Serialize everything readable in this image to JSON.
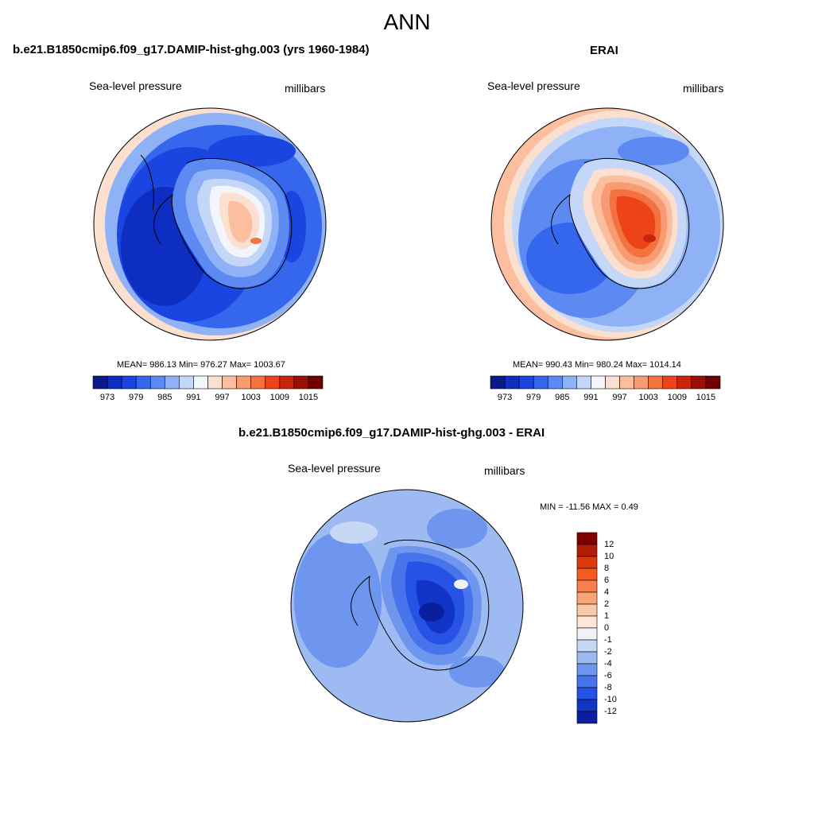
{
  "main_title": "ANN",
  "panels": {
    "model": {
      "title": "b.e21.B1850cmip6.f09_g17.DAMIP-hist-ghg.003 (yrs 1960-1984)",
      "left_label": "Sea-level pressure",
      "right_label": "millibars",
      "stats": "MEAN= 986.13  Min= 976.27  Max= 1003.67",
      "mean": 986.13,
      "min": 976.27,
      "max": 1003.67
    },
    "obs": {
      "title": "ERAI",
      "left_label": "Sea-level pressure",
      "right_label": "millibars",
      "stats": "MEAN= 990.43  Min= 980.24  Max= 1014.14",
      "mean": 990.43,
      "min": 980.24,
      "max": 1014.14
    },
    "diff": {
      "title": "b.e21.B1850cmip6.f09_g17.DAMIP-hist-ghg.003 - ERAI",
      "left_label": "Sea-level pressure",
      "right_label": "millibars",
      "stats": "MIN = -11.56 MAX =   0.49",
      "min": -11.56,
      "max": 0.49
    }
  },
  "colorbar_abs": {
    "tick_labels": [
      "973",
      "979",
      "985",
      "991",
      "997",
      "1003",
      "1009",
      "1015"
    ],
    "colors": [
      "#0a1a8c",
      "#0d2ec0",
      "#1a45e0",
      "#3566ee",
      "#5c8af2",
      "#8fb1f5",
      "#c4d7f8",
      "#f2f5fb",
      "#fce0cf",
      "#fbbf9f",
      "#f89a72",
      "#f4723f",
      "#ec4418",
      "#c9250a",
      "#9a1005",
      "#6e0000"
    ]
  },
  "colorbar_diff": {
    "tick_labels": [
      "12",
      "10",
      "8",
      "6",
      "4",
      "2",
      "1",
      "0",
      "-1",
      "-2",
      "-4",
      "-6",
      "-8",
      "-10",
      "-12"
    ],
    "colors": [
      "#820000",
      "#b41c05",
      "#dc3a0d",
      "#f55a22",
      "#fa7e4b",
      "#fba477",
      "#fcc9a8",
      "#fde6d6",
      "#f0f2f8",
      "#c7d8f6",
      "#9dbaf3",
      "#6e96ef",
      "#4774eb",
      "#2653e5",
      "#1235c8",
      "#0a1e9e"
    ]
  }
}
